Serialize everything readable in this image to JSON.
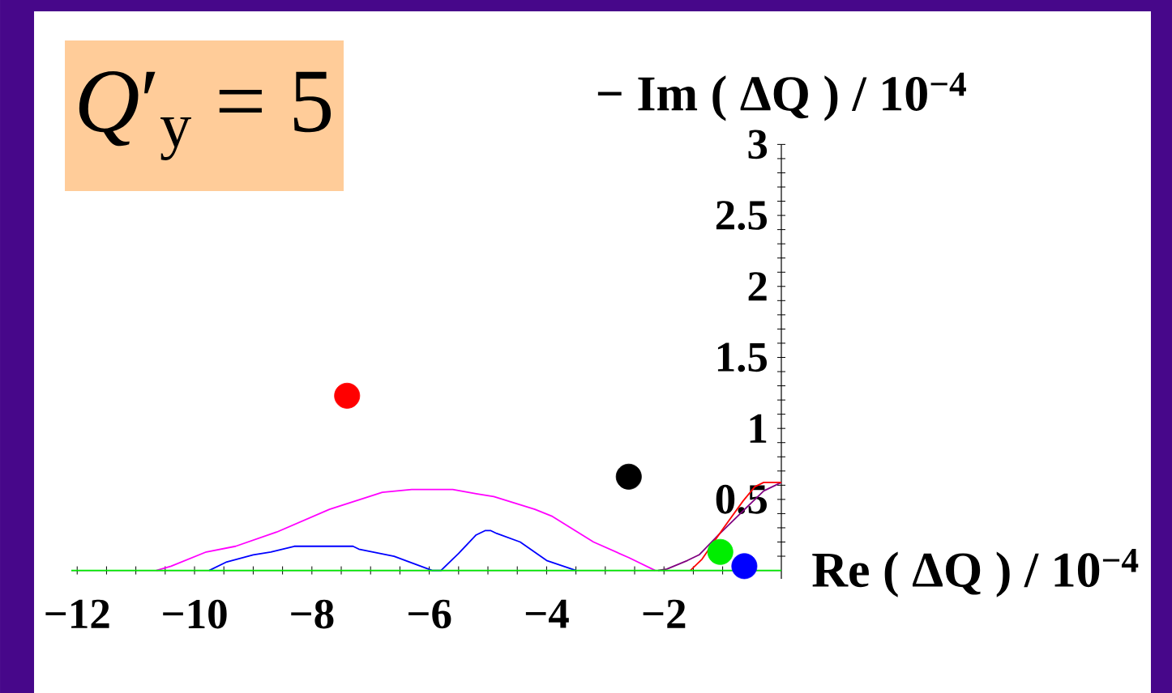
{
  "chart_data": {
    "type": "line",
    "title": "*Q*′$_{y}$ = 5",
    "xlabel": "Re ( ΔQ ) / 10$^{−4}$",
    "ylabel": "− Im ( ΔQ ) / 10$^{−4}$",
    "xlim": [
      -12.1,
      0
    ],
    "ylim": [
      -0.06,
      3
    ],
    "xticks": [
      {
        "value": -12,
        "label": "−12"
      },
      {
        "value": -11.5,
        "label": null
      },
      {
        "value": -11,
        "label": null
      },
      {
        "value": -10.5,
        "label": null
      },
      {
        "value": -10,
        "label": "−10"
      },
      {
        "value": -9.5,
        "label": null
      },
      {
        "value": -9,
        "label": null
      },
      {
        "value": -8.5,
        "label": null
      },
      {
        "value": -8,
        "label": "−8"
      },
      {
        "value": -7.5,
        "label": null
      },
      {
        "value": -7,
        "label": null
      },
      {
        "value": -6.5,
        "label": null
      },
      {
        "value": -6,
        "label": "−6"
      },
      {
        "value": -5.5,
        "label": null
      },
      {
        "value": -5,
        "label": null
      },
      {
        "value": -4.5,
        "label": null
      },
      {
        "value": -4,
        "label": "−4"
      },
      {
        "value": -3.5,
        "label": null
      },
      {
        "value": -3,
        "label": null
      },
      {
        "value": -2.5,
        "label": null
      },
      {
        "value": -2,
        "label": "−2"
      },
      {
        "value": -1.5,
        "label": null
      },
      {
        "value": -1,
        "label": null
      },
      {
        "value": -0.5,
        "label": null
      }
    ],
    "yticks": [
      {
        "value": 0.1,
        "label": null
      },
      {
        "value": 0.2,
        "label": null
      },
      {
        "value": 0.3,
        "label": null
      },
      {
        "value": 0.4,
        "label": null
      },
      0.5,
      {
        "value": 0.6,
        "label": null
      },
      {
        "value": 0.7,
        "label": null
      },
      {
        "value": 0.8,
        "label": null
      },
      {
        "value": 0.9,
        "label": null
      },
      1,
      {
        "value": 1.1,
        "label": null
      },
      {
        "value": 1.2,
        "label": null
      },
      {
        "value": 1.3,
        "label": null
      },
      {
        "value": 1.4,
        "label": null
      },
      1.5,
      {
        "value": 1.6,
        "label": null
      },
      {
        "value": 1.7,
        "label": null
      },
      {
        "value": 1.8,
        "label": null
      },
      {
        "value": 1.9,
        "label": null
      },
      2,
      {
        "value": 2.1,
        "label": null
      },
      {
        "value": 2.2,
        "label": null
      },
      {
        "value": 2.3,
        "label": null
      },
      {
        "value": 2.4,
        "label": null
      },
      2.5,
      {
        "value": 2.6,
        "label": null
      },
      {
        "value": 2.7,
        "label": null
      },
      {
        "value": 2.8,
        "label": null
      },
      {
        "value": 2.9,
        "label": null
      },
      3
    ],
    "series": [
      {
        "color": "#ff00ff",
        "x": [
          -10.65,
          -10.4,
          -9.8,
          -9.3,
          -8.6,
          -7.7,
          -6.8,
          -6.3,
          -5.6,
          -5.2,
          -4.9,
          -4.2,
          -3.9,
          -3.2,
          -2.6,
          -2.15
        ],
        "values": [
          0,
          0.03,
          0.13,
          0.17,
          0.27,
          0.43,
          0.55,
          0.57,
          0.57,
          0.54,
          0.52,
          0.43,
          0.38,
          0.2,
          0.09,
          0
        ]
      },
      {
        "color": "#0000ff",
        "x": [
          -9.75,
          -9.45,
          -9.0,
          -8.7,
          -8.3,
          -7.3,
          -7.2,
          -6.6,
          -5.95,
          -5.8,
          -5.5,
          -5.2,
          -5.05,
          -4.95,
          -4.85,
          -4.45,
          -4.0,
          -3.5
        ],
        "values": [
          0,
          0.06,
          0.11,
          0.13,
          0.17,
          0.17,
          0.15,
          0.1,
          0,
          0,
          0.12,
          0.25,
          0.28,
          0.28,
          0.26,
          0.2,
          0.07,
          0
        ]
      },
      {
        "color": "#800080",
        "x": [
          -2.1,
          -1.95,
          -1.6,
          -1.4,
          -1.07,
          -0.6,
          -0.3,
          0
        ],
        "values": [
          0,
          0.01,
          0.07,
          0.11,
          0.25,
          0.44,
          0.56,
          0.62
        ]
      },
      {
        "color": "#ff0000",
        "x": [
          -1.55,
          -1.35,
          -1.0,
          -0.65,
          -0.45,
          -0.3,
          0
        ],
        "values": [
          0,
          0.08,
          0.29,
          0.49,
          0.59,
          0.62,
          0.62
        ]
      },
      {
        "color": "#00ee00",
        "x": [
          -12.1,
          -6,
          0
        ],
        "values": [
          0,
          0,
          0
        ]
      },
      {
        "type": "scatter",
        "marker": "circle",
        "colors": [
          "#ff0000",
          "#000000",
          "#00ee00",
          "#0000ff"
        ],
        "x": [
          -7.4,
          -2.6,
          -1.04,
          -0.63
        ],
        "values": [
          1.23,
          0.66,
          0.13,
          0.03
        ]
      }
    ]
  }
}
